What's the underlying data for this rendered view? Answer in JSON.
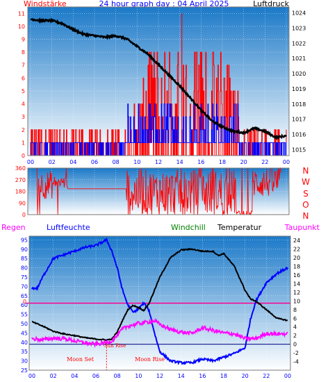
{
  "header": {
    "left_label": "Windstärke",
    "title": "24 hour graph day : 04 April 2025",
    "right_label": "Luftdruck"
  },
  "compass": [
    "N",
    "W",
    "S",
    "O",
    "N"
  ],
  "legend_bottom": {
    "rain": "Regen",
    "humidity": "Luftfeuchte",
    "windchill": "Windchill",
    "temperature": "Temperatur",
    "dewpoint": "Taupunkt"
  },
  "annotations": {
    "moon_set": "Moon Set",
    "moon_rise": "Moon Rise",
    "sun_rise": "Sun Rise",
    "zero_marker": "0"
  },
  "colors": {
    "wind": "#ff0000",
    "gust": "#0000ff",
    "pressure": "#000000",
    "direction": "#ff0000",
    "humidity": "#0000ff",
    "temperature": "#000000",
    "dewpoint": "#ff00ff",
    "windchill": "#008000",
    "rain": "#ff00ff",
    "bg_top": "#1b79c8",
    "bg_bottom": "#ffffff"
  },
  "chart_data": [
    {
      "type": "line",
      "name": "wind-pressure",
      "x_ticks": [
        "00",
        "02",
        "04",
        "06",
        "08",
        "10",
        "12",
        "14",
        "16",
        "18",
        "20",
        "22",
        "00"
      ],
      "y_left_ticks": [
        "0",
        "1",
        "2",
        "3",
        "4",
        "5",
        "6",
        "7",
        "8",
        "9",
        "10",
        "11"
      ],
      "y_left_range": [
        0,
        11.5
      ],
      "y_right_ticks": [
        "1015",
        "1016",
        "1017",
        "1018",
        "1019",
        "1020",
        "1021",
        "1022",
        "1023",
        "1024"
      ],
      "y_right_range": [
        1014.6,
        1024.4
      ],
      "pressure": {
        "x": [
          0,
          1,
          2,
          3,
          4,
          5,
          6,
          7,
          8,
          9,
          10,
          11,
          12,
          13,
          14,
          15,
          16,
          17,
          18,
          19,
          20,
          21,
          22,
          23,
          24
        ],
        "y": [
          1023.6,
          1023.5,
          1023.5,
          1023.3,
          1022.9,
          1022.6,
          1022.5,
          1022.4,
          1022.5,
          1022.3,
          1021.8,
          1021.3,
          1020.6,
          1019.9,
          1019.2,
          1018.4,
          1017.6,
          1016.9,
          1016.5,
          1016.2,
          1016.1,
          1016.4,
          1016.2,
          1015.8,
          1015.9
        ]
      },
      "wind_sections": [
        {
          "from": 0,
          "to": 9,
          "range": [
            0,
            2
          ]
        },
        {
          "from": 9,
          "to": 10.5,
          "range": [
            0,
            4
          ]
        },
        {
          "from": 10.5,
          "to": 19.5,
          "range": [
            0,
            8
          ]
        },
        {
          "from": 19.5,
          "to": 24,
          "range": [
            0,
            2
          ]
        }
      ],
      "wind_peak": {
        "x": 14.2,
        "y": 11
      }
    },
    {
      "type": "line",
      "name": "wind-direction",
      "y_ticks": [
        "0",
        "90",
        "180",
        "270",
        "360"
      ],
      "y_range": [
        0,
        360
      ],
      "segments": [
        {
          "from": 0.6,
          "to": 2.2,
          "mean": 230,
          "spread": 110
        },
        {
          "from": 2.2,
          "to": 3.5,
          "mean": 250,
          "spread": 50
        },
        {
          "from": 3.5,
          "to": 9.0,
          "mean": 200,
          "spread": 0
        },
        {
          "from": 9.0,
          "to": 19.3,
          "mean": 170,
          "spread": 180
        },
        {
          "from": 19.3,
          "to": 20.8,
          "mean": 10,
          "spread": 20
        },
        {
          "from": 20.8,
          "to": 23.5,
          "mean": 250,
          "spread": 120
        }
      ]
    },
    {
      "type": "line",
      "name": "weather",
      "x_ticks": [
        "00",
        "02",
        "04",
        "06",
        "08",
        "10",
        "12",
        "14",
        "16",
        "18",
        "20",
        "22",
        "00"
      ],
      "y_left_ticks": [
        "25",
        "30",
        "35",
        "40",
        "45",
        "50",
        "55",
        "60",
        "65",
        "70",
        "75",
        "80",
        "85",
        "90",
        "95"
      ],
      "y_left_range": [
        25,
        97
      ],
      "y_right_ticks": [
        "-4",
        "-2",
        "0",
        "2",
        "4",
        "6",
        "8",
        "10",
        "12",
        "14",
        "16",
        "18",
        "20",
        "22",
        "24"
      ],
      "y_right_range": [
        -6,
        25
      ],
      "humidity": {
        "x": [
          0,
          0.5,
          1,
          2,
          3,
          4,
          5,
          6,
          7,
          7.5,
          8,
          8.5,
          9,
          9.5,
          10,
          10.5,
          11,
          11.5,
          12,
          13,
          14,
          15,
          16,
          17,
          18,
          19,
          20,
          20.5,
          21,
          22,
          23,
          24
        ],
        "y": [
          69,
          69,
          75,
          85,
          87,
          89,
          91,
          92,
          95,
          89,
          80,
          68,
          60,
          56,
          58,
          61,
          57,
          45,
          35,
          30,
          29,
          29,
          31,
          30,
          32,
          34,
          37,
          52,
          62,
          72,
          77,
          80
        ]
      },
      "temperature": {
        "x": [
          0,
          1,
          2,
          3,
          4,
          5,
          6,
          7,
          7.5,
          8,
          8.5,
          9,
          9.5,
          10,
          10.5,
          11,
          11.5,
          12,
          13,
          14,
          15,
          16,
          17,
          17.5,
          18,
          19,
          20,
          20.5,
          21,
          22,
          23,
          24
        ],
        "y": [
          5.2,
          4.2,
          3.0,
          2.4,
          2.0,
          1.5,
          1.2,
          1.0,
          1.2,
          2.8,
          5.5,
          8.0,
          9.0,
          8.5,
          7.8,
          9.5,
          12.5,
          15.5,
          20.0,
          21.8,
          22.0,
          21.5,
          21.5,
          20.5,
          21.0,
          18.0,
          12.5,
          10.5,
          10.0,
          8.0,
          6.0,
          5.5
        ]
      },
      "dewpoint": {
        "x": [
          0,
          1,
          2,
          3,
          4,
          5,
          6,
          7,
          7.5,
          8,
          8.5,
          9,
          10,
          11,
          11.5,
          12,
          13,
          14,
          15,
          16,
          17,
          18,
          19,
          20,
          21,
          22,
          23,
          24
        ],
        "y": [
          1.3,
          1.0,
          1.4,
          1.3,
          0.8,
          0.3,
          0.0,
          0.4,
          0.8,
          2.0,
          3.5,
          4.2,
          4.8,
          5.2,
          5.4,
          4.6,
          3.4,
          2.8,
          2.5,
          3.8,
          3.2,
          2.6,
          2.4,
          1.3,
          1.3,
          2.5,
          2.4,
          2.4
        ]
      },
      "zero_line_left": 61,
      "zero_line_label": "0",
      "dark_line_right": 0,
      "moon_set_x": 6.0,
      "moon_rise_x": 8.0,
      "sun_rise_x": 7.0
    }
  ]
}
